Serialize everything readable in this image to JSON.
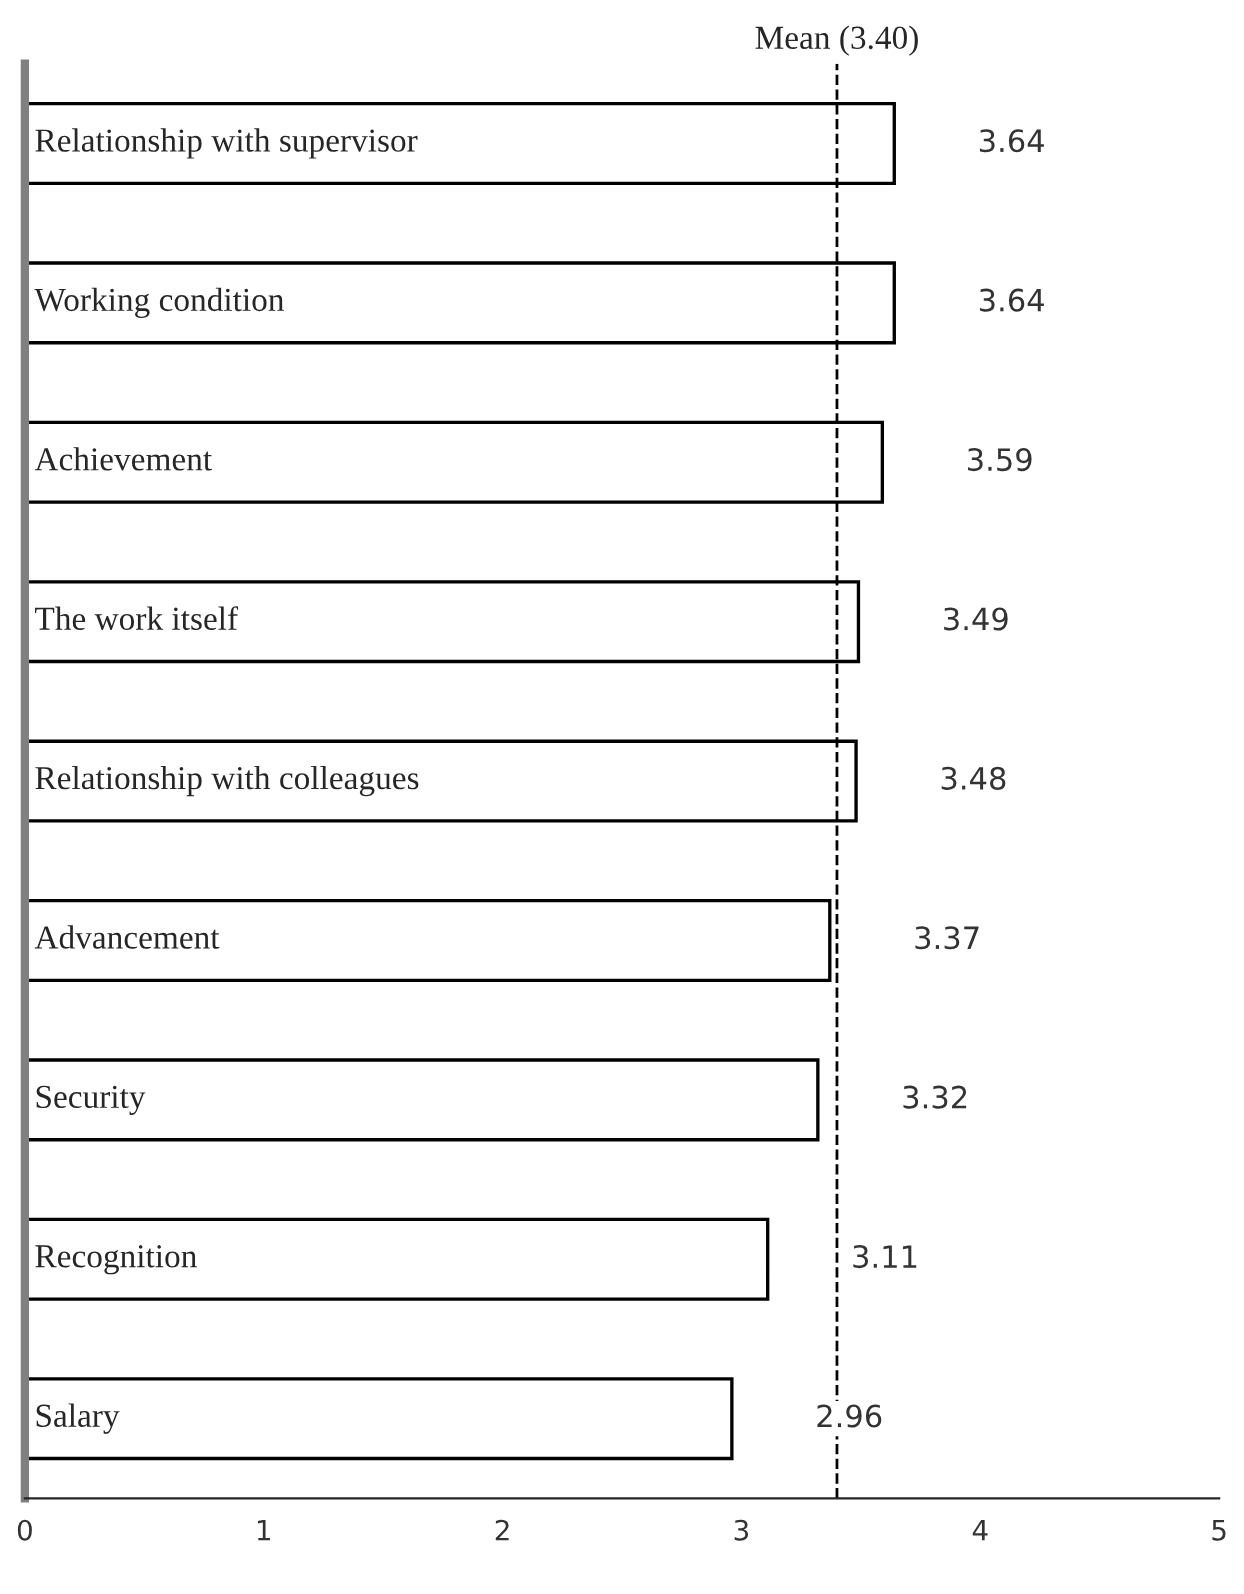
{
  "chart_data": {
    "type": "bar",
    "orientation": "horizontal",
    "categories": [
      "Relationship with supervisor",
      "Working condition",
      "Achievement",
      "The work itself",
      "Relationship with colleagues",
      "Advancement",
      "Security",
      "Recognition",
      "Salary"
    ],
    "values": [
      3.64,
      3.64,
      3.59,
      3.49,
      3.48,
      3.37,
      3.32,
      3.11,
      2.96
    ],
    "color": "#ffffff",
    "data_labels": true,
    "xlim": [
      0,
      5
    ],
    "xticks": [
      0,
      1,
      2,
      3,
      4,
      5
    ],
    "ref_lines": [
      {
        "axis": "x",
        "value": 3.4,
        "label": "Mean (3.40)",
        "line_style": "dashed",
        "color": "#000000"
      }
    ],
    "grid": false,
    "legend": false
  }
}
